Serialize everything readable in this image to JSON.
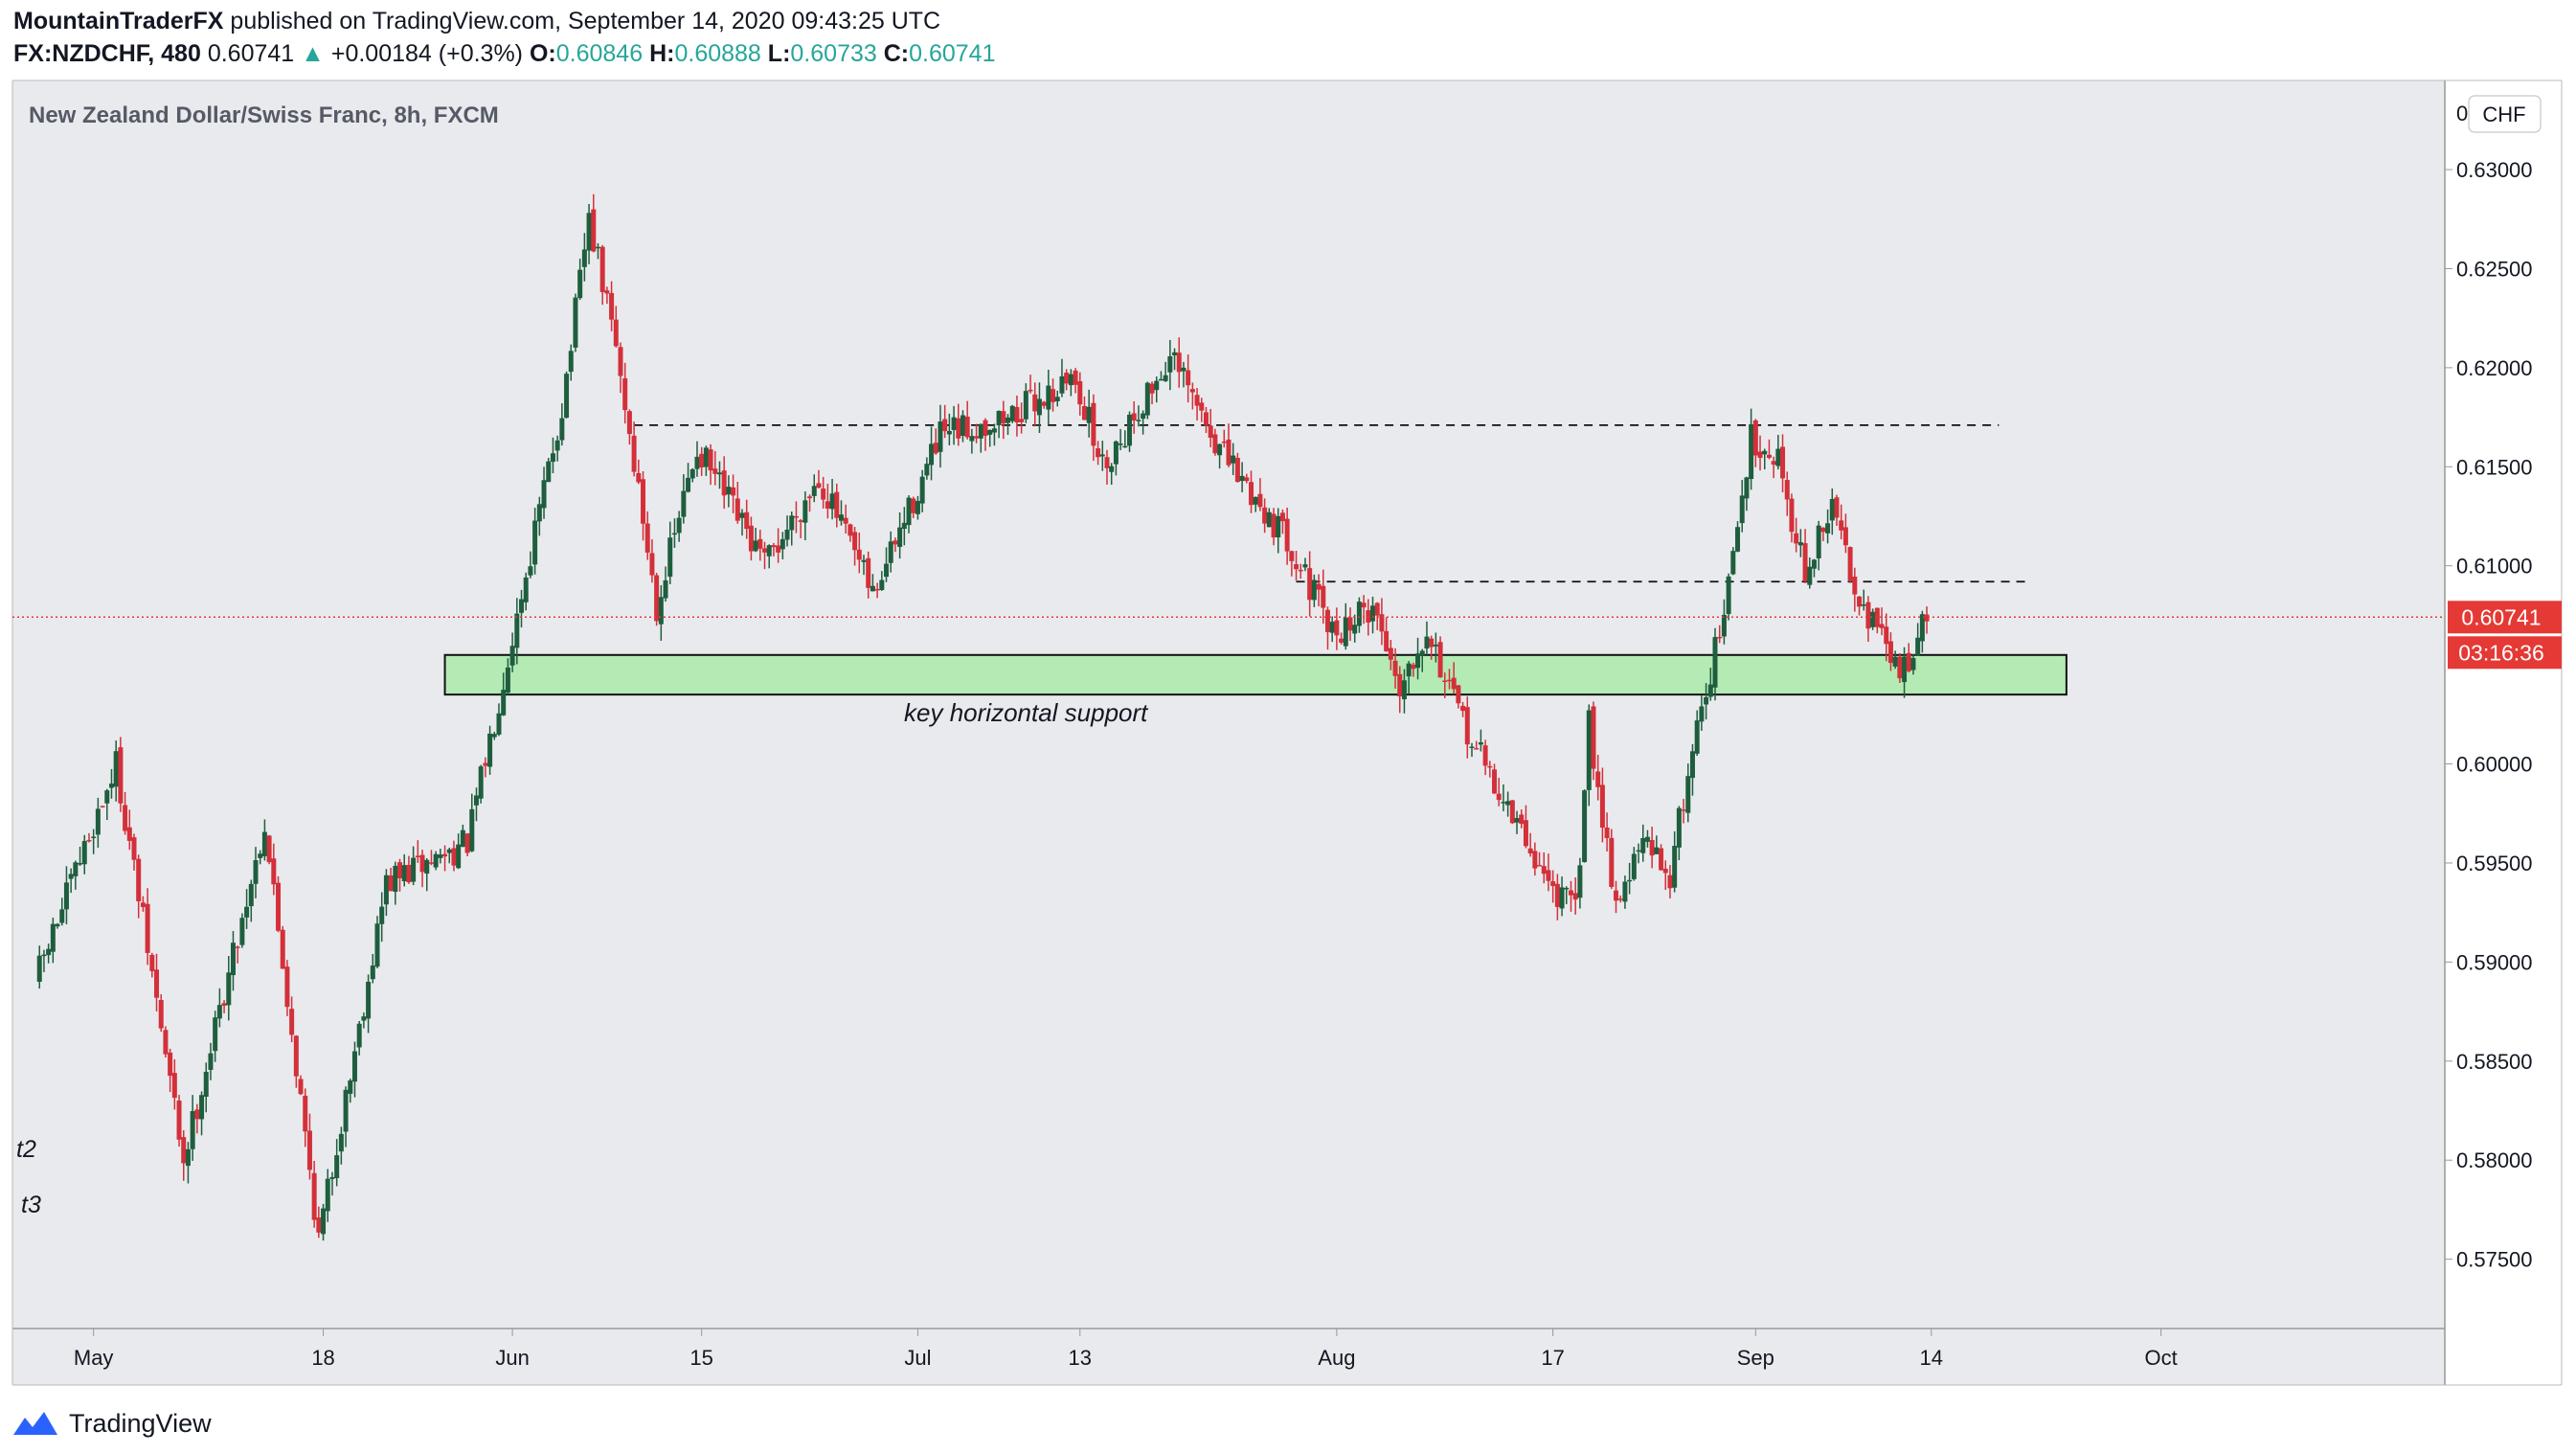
{
  "header": {
    "author": "MountainTraderFX",
    "published_text": "published on TradingView.com, September 14, 2020 09:43:25 UTC",
    "symbol": "FX:NZDCHF, 480",
    "last": "0.60741",
    "change_arrow": "▲",
    "change": "+0.00184 (+0.3%)",
    "open_label": "O:",
    "open": "0.60846",
    "high_label": "H:",
    "high": "0.60888",
    "low_label": "L:",
    "low": "0.60733",
    "close_label": "C:",
    "close": "0.60741"
  },
  "chart_title": "New Zealand Dollar/Swiss Franc, 8h, FXCM",
  "currency_badge": "CHF",
  "price_tag": "0.60741",
  "countdown_tag": "03:16:36",
  "top_tick_partial": "0",
  "annotations": {
    "support_label": "key horizontal support",
    "left_label_1": "t2",
    "left_label_2": "t3"
  },
  "footer": {
    "brand": "TradingView"
  },
  "colors": {
    "background": "#e9eaed",
    "up": "#1e5e3e",
    "down": "#d3303a",
    "support_fill": "#b4eab4",
    "price_line": "#e53935",
    "accent": "#2962ff"
  },
  "chart_data": {
    "type": "candlestick",
    "y_axis_ticks": [
      "0.63000",
      "0.62500",
      "0.62000",
      "0.61500",
      "0.61000",
      "0.60000",
      "0.59500",
      "0.59000",
      "0.58500",
      "0.58000",
      "0.57500"
    ],
    "x_axis_ticks": [
      "May",
      "18",
      "Jun",
      "15",
      "Jul",
      "13",
      "Aug",
      "17",
      "Sep",
      "14",
      "Oct"
    ],
    "ylim": [
      0.5715,
      0.6345
    ],
    "last_price": 0.60741,
    "support_zone": {
      "low": 0.6035,
      "high": 0.6055,
      "from": "2020-05-27",
      "to": "2020-09-24"
    },
    "resistance_lines": [
      {
        "price": 0.6171,
        "from": "2020-06-10",
        "to": "2020-09-19"
      },
      {
        "price": 0.6092,
        "from": "2020-07-29",
        "to": "2020-09-21"
      }
    ],
    "key_points": [
      {
        "date": "2020-04-27",
        "price": 0.589
      },
      {
        "date": "2020-05-03",
        "price": 0.6
      },
      {
        "date": "2020-05-08",
        "price": 0.58
      },
      {
        "date": "2020-05-14",
        "price": 0.597
      },
      {
        "date": "2020-05-18",
        "price": 0.576
      },
      {
        "date": "2020-05-23",
        "price": 0.594
      },
      {
        "date": "2020-05-29",
        "price": 0.596
      },
      {
        "date": "2020-06-05",
        "price": 0.618
      },
      {
        "date": "2020-06-07",
        "price": 0.6275
      },
      {
        "date": "2020-06-09",
        "price": 0.621
      },
      {
        "date": "2020-06-12",
        "price": 0.608
      },
      {
        "date": "2020-06-15",
        "price": 0.616
      },
      {
        "date": "2020-06-20",
        "price": 0.61
      },
      {
        "date": "2020-06-24",
        "price": 0.6145
      },
      {
        "date": "2020-06-28",
        "price": 0.6085
      },
      {
        "date": "2020-07-03",
        "price": 0.6165
      },
      {
        "date": "2020-07-08",
        "price": 0.6175
      },
      {
        "date": "2020-07-13",
        "price": 0.6195
      },
      {
        "date": "2020-07-15",
        "price": 0.615
      },
      {
        "date": "2020-07-20",
        "price": 0.6205
      },
      {
        "date": "2020-07-24",
        "price": 0.6155
      },
      {
        "date": "2020-07-29",
        "price": 0.611
      },
      {
        "date": "2020-08-01",
        "price": 0.6065
      },
      {
        "date": "2020-08-04",
        "price": 0.608
      },
      {
        "date": "2020-08-06",
        "price": 0.604
      },
      {
        "date": "2020-08-08",
        "price": 0.607
      },
      {
        "date": "2020-08-10",
        "price": 0.603
      },
      {
        "date": "2020-08-13",
        "price": 0.599
      },
      {
        "date": "2020-08-17",
        "price": 0.594
      },
      {
        "date": "2020-08-19",
        "price": 0.5925
      },
      {
        "date": "2020-08-20",
        "price": 0.602
      },
      {
        "date": "2020-08-22",
        "price": 0.593
      },
      {
        "date": "2020-08-24",
        "price": 0.596
      },
      {
        "date": "2020-08-26",
        "price": 0.5945
      },
      {
        "date": "2020-08-28",
        "price": 0.602
      },
      {
        "date": "2020-08-30",
        "price": 0.6075
      },
      {
        "date": "2020-09-01",
        "price": 0.6165
      },
      {
        "date": "2020-09-03",
        "price": 0.6155
      },
      {
        "date": "2020-09-05",
        "price": 0.6095
      },
      {
        "date": "2020-09-07",
        "price": 0.613
      },
      {
        "date": "2020-09-09",
        "price": 0.6085
      },
      {
        "date": "2020-09-12",
        "price": 0.6045
      },
      {
        "date": "2020-09-14",
        "price": 0.6074
      }
    ]
  }
}
